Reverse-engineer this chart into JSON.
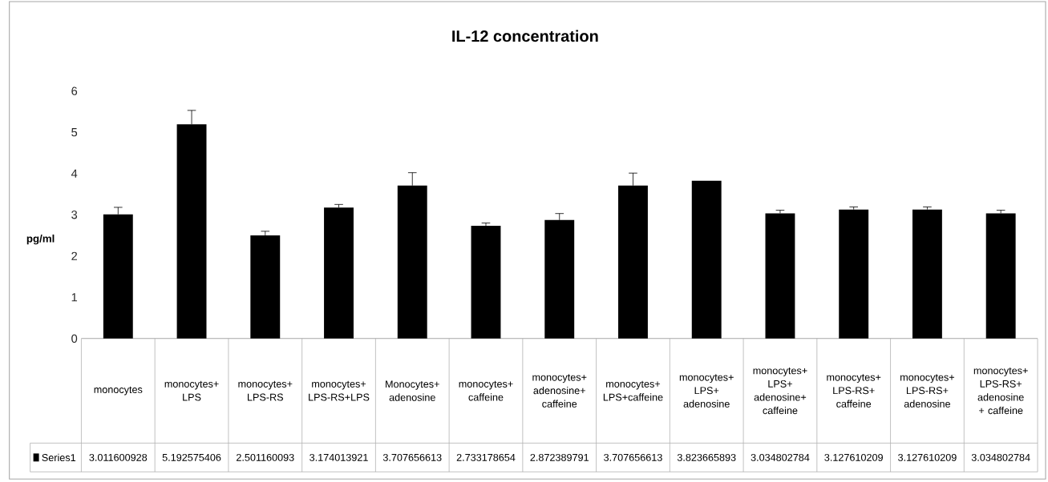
{
  "chart_data": {
    "type": "bar",
    "title": "IL-12 concentration",
    "ylabel": "pg/ml",
    "categories": [
      "monocytes",
      "monocytes+LPS",
      "monocytes+LPS-RS",
      "monocytes+LPS-RS+LPS",
      "Monocytes+adenosine",
      "monocytes+caffeine",
      "monocytes+adenosine+caffeine",
      "monocytes+LPS+caffeine",
      "monocytes+LPS+adenosine",
      "monocytes+LPS+adenosine+caffeine",
      "monocytes+LPS-RS+caffeine",
      "monocytes+LPS-RS+adenosine",
      "monocytes+LPS-RS+adenosine + caffeine"
    ],
    "series": [
      {
        "name": "Series1",
        "color": "#000000",
        "values": [
          3.011600928,
          5.192575406,
          2.501160093,
          3.174013921,
          3.707656613,
          2.733178654,
          2.872389791,
          3.707656613,
          3.823665893,
          3.034802784,
          3.127610209,
          3.127610209,
          3.034802784
        ],
        "errors": [
          [
            3.011600928,
            3.18
          ],
          [
            5.192575406,
            5.53
          ],
          [
            2.501160093,
            2.6
          ],
          [
            3.174013921,
            3.25
          ],
          [
            3.707656613,
            4.02
          ],
          [
            2.733178654,
            2.8
          ],
          [
            2.872389791,
            3.03
          ],
          [
            3.707656613,
            4.01
          ],
          null,
          [
            3.034802784,
            3.11
          ],
          [
            3.127610209,
            3.19
          ],
          [
            3.127610209,
            3.19
          ],
          [
            3.034802784,
            3.11
          ]
        ]
      }
    ],
    "ylim": [
      0,
      6
    ],
    "yticks": [
      0,
      1,
      2,
      3,
      4,
      5,
      6
    ],
    "data_labels": true,
    "legend": "bottom"
  }
}
